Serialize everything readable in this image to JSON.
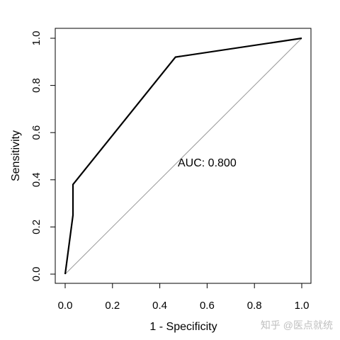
{
  "chart_data": {
    "type": "line",
    "xlabel": "1 - Specificity",
    "ylabel": "Sensitivity",
    "xlim": [
      0,
      1
    ],
    "ylim": [
      0,
      1
    ],
    "x_ticks": [
      "0.0",
      "0.2",
      "0.4",
      "0.6",
      "0.8",
      "1.0"
    ],
    "y_ticks": [
      "0.0",
      "0.2",
      "0.4",
      "0.6",
      "0.8",
      "1.0"
    ],
    "grid": false,
    "series": [
      {
        "x": [
          0.0,
          0.033,
          0.033,
          0.466,
          1.0
        ],
        "y": [
          0.0,
          0.25,
          0.38,
          0.92,
          1.0
        ],
        "color": "#000000"
      }
    ],
    "reference_line": {
      "x": [
        0,
        1
      ],
      "y": [
        0,
        1
      ],
      "color": "#9a9a9a"
    },
    "annotations": [
      {
        "text": "AUC: 0.800",
        "x": 0.5,
        "y": 0.475
      }
    ]
  },
  "watermark": "知乎 @医点就统"
}
